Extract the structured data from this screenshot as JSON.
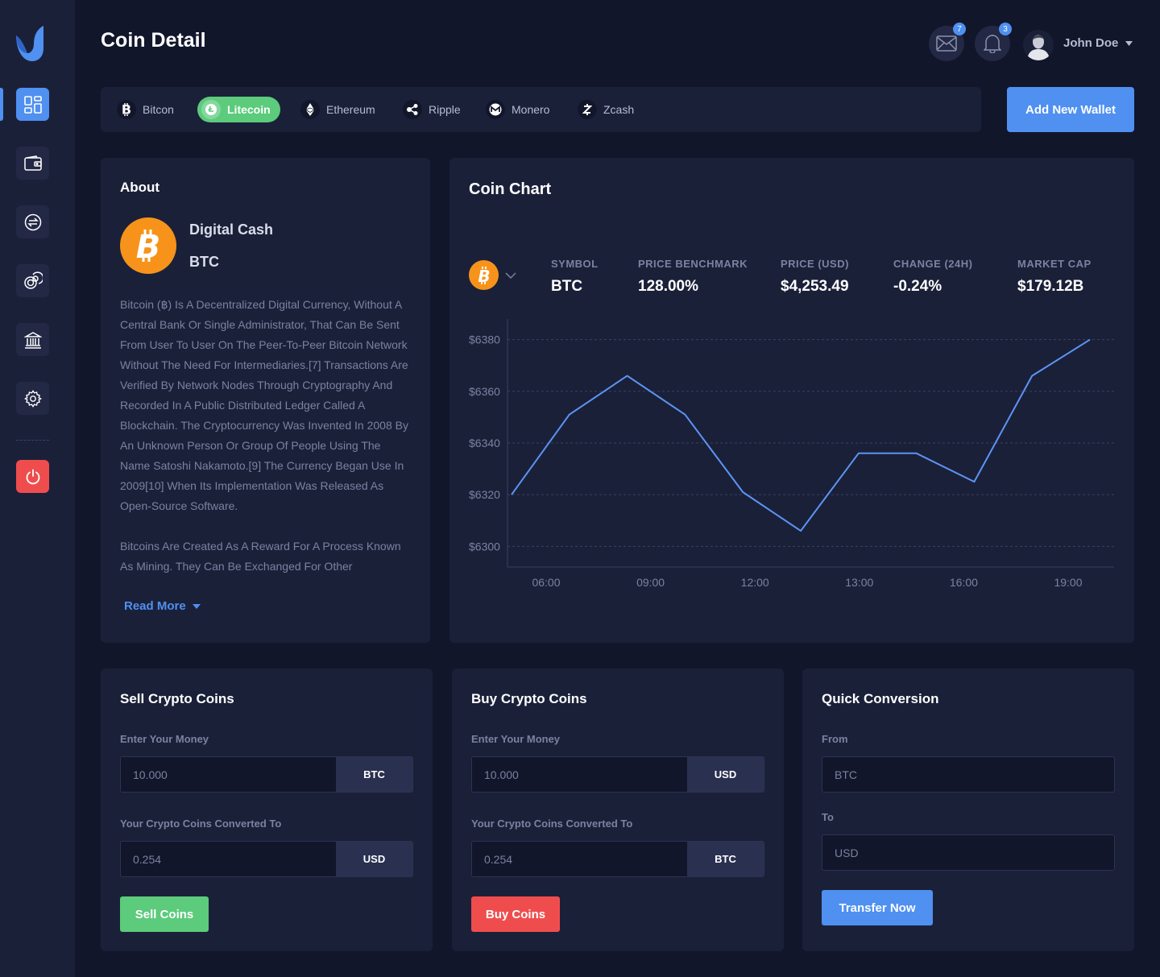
{
  "page": {
    "title": "Coin Detail"
  },
  "header": {
    "messages_count": "7",
    "notifications_count": "3",
    "user_name": "John Doe"
  },
  "sidebar": {
    "items": [
      {
        "icon": "dashboard-icon",
        "active": true
      },
      {
        "icon": "wallet-icon",
        "active": false
      },
      {
        "icon": "exchange-icon",
        "active": false
      },
      {
        "icon": "coins-icon",
        "active": false
      },
      {
        "icon": "bank-icon",
        "active": false
      },
      {
        "icon": "gear-icon",
        "active": false
      },
      {
        "icon": "power-icon",
        "active": false
      }
    ]
  },
  "coin_tabs": [
    {
      "label": "Bitcon",
      "icon": "bitcoin-icon",
      "active": false
    },
    {
      "label": "Litecoin",
      "icon": "litecoin-icon",
      "active": true
    },
    {
      "label": "Ethereum",
      "icon": "ethereum-icon",
      "active": false
    },
    {
      "label": "Ripple",
      "icon": "ripple-icon",
      "active": false
    },
    {
      "label": "Monero",
      "icon": "monero-icon",
      "active": false
    },
    {
      "label": "Zcash",
      "icon": "zcash-icon",
      "active": false
    }
  ],
  "add_wallet_label": "Add New Wallet",
  "about": {
    "title": "About",
    "coin_name": "Digital Cash",
    "coin_symbol": "BTC",
    "paragraph1": "Bitcoin (฿) Is A Decentralized Digital Currency, Without A Central Bank Or Single Administrator, That Can Be Sent From User To User On The Peer-To-Peer Bitcoin Network Without The Need For Intermediaries.[7] Transactions Are Verified By Network Nodes Through Cryptography And Recorded In A Public Distributed Ledger Called A Blockchain. The Cryptocurrency Was Invented In 2008 By An Unknown Person Or Group Of People Using The Name Satoshi Nakamoto.[9] The Currency Began Use In 2009[10] When Its Implementation Was Released As Open-Source Software.",
    "paragraph2": "Bitcoins Are Created As A Reward For A Process Known As Mining. They Can Be Exchanged For Other",
    "read_more": "Read More"
  },
  "coin_chart": {
    "title": "Coin Chart",
    "stats": [
      {
        "label": "SYMBOL",
        "value": "BTC"
      },
      {
        "label": "PRICE BENCHMARK",
        "value": "128.00%"
      },
      {
        "label": "PRICE (USD)",
        "value": "$4,253.49"
      },
      {
        "label": "CHANGE (24H)",
        "value": "-0.24%"
      },
      {
        "label": "MARKET CAP",
        "value": "$179.12B"
      }
    ]
  },
  "chart_data": {
    "type": "line",
    "title": "",
    "xlabel": "",
    "ylabel": "",
    "x_tick_labels": [
      "06:00",
      "09:00",
      "12:00",
      "13:00",
      "16:00",
      "19:00"
    ],
    "y_tick_labels": [
      "$6380",
      "$6360",
      "$6340",
      "$6320",
      "$6300"
    ],
    "y_ticks": [
      6380,
      6360,
      6340,
      6320,
      6300
    ],
    "ylim": [
      6292,
      6388
    ],
    "grid": "horizontal dashed",
    "line_color": "#5b95f5",
    "series": [
      {
        "values": [
          6320,
          6351,
          6366,
          6351,
          6321,
          6306,
          6336,
          6336,
          6325,
          6366,
          6380
        ]
      }
    ]
  },
  "sell": {
    "title": "Sell Crypto Coins",
    "money_label": "Enter Your Money",
    "money_value": "10.000",
    "money_unit": "BTC",
    "converted_label": "Your Crypto Coins Converted To",
    "converted_value": "0.254",
    "converted_unit": "USD",
    "button": "Sell Coins",
    "button_color": "#5ccb7c"
  },
  "buy": {
    "title": "Buy Crypto Coins",
    "money_label": "Enter Your Money",
    "money_value": "10.000",
    "money_unit": "USD",
    "converted_label": "Your Crypto Coins Converted To",
    "converted_value": "0.254",
    "converted_unit": "BTC",
    "button": "Buy Coins",
    "button_color": "#ef4d4d"
  },
  "conversion": {
    "title": "Quick Conversion",
    "from_label": "From",
    "from_placeholder": "BTC",
    "to_label": "To",
    "to_placeholder": "USD",
    "button": "Transfer Now",
    "button_color": "#4f90f0"
  }
}
